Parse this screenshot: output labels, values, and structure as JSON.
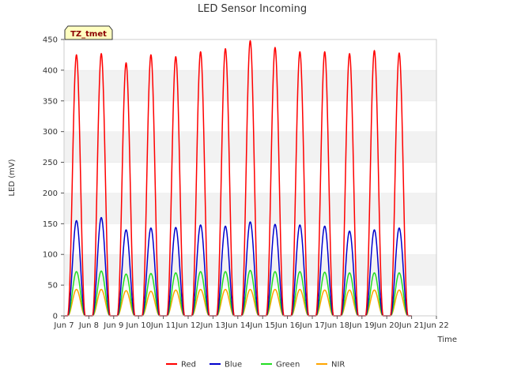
{
  "chart_data": {
    "type": "line",
    "title": "LED Sensor Incoming",
    "xlabel": "Time",
    "ylabel": "LED (mV)",
    "badge": "TZ_tmet",
    "xlim": [
      7,
      22
    ],
    "ylim": [
      0,
      450
    ],
    "x_ticks": [
      7,
      8,
      9,
      10,
      11,
      12,
      13,
      14,
      15,
      16,
      17,
      18,
      19,
      20,
      21,
      22
    ],
    "x_tick_labels": [
      "Jun 7",
      "Jun 8",
      "Jun 9",
      "Jun 10",
      "Jun 11",
      "Jun 12",
      "Jun 13",
      "Jun 14",
      "Jun 15",
      "Jun 16",
      "Jun 17",
      "Jun 18",
      "Jun 19",
      "Jun 20",
      "Jun 21",
      "Jun 22"
    ],
    "y_ticks": [
      0,
      50,
      100,
      150,
      200,
      250,
      300,
      350,
      400,
      450
    ],
    "y_tick_labels": [
      "0",
      "50",
      "100",
      "150",
      "200",
      "250",
      "300",
      "350",
      "400",
      "450"
    ],
    "grid": "horizontal bands",
    "legend_position": "bottom-center",
    "peak_days": [
      7.5,
      8.5,
      9.5,
      10.5,
      11.5,
      12.5,
      13.5,
      14.5,
      15.5,
      16.5,
      17.5,
      18.5,
      19.5,
      20.5
    ],
    "series": [
      {
        "name": "Red",
        "color": "#ff0000",
        "peaks": [
          425,
          427,
          412,
          425,
          422,
          430,
          435,
          448,
          437,
          430,
          430,
          427,
          432,
          428
        ]
      },
      {
        "name": "Blue",
        "color": "#0000cc",
        "peaks": [
          155,
          160,
          140,
          143,
          144,
          148,
          146,
          153,
          149,
          148,
          146,
          138,
          140,
          143
        ]
      },
      {
        "name": "Green",
        "color": "#22dd22",
        "peaks": [
          72,
          73,
          68,
          69,
          70,
          72,
          72,
          74,
          72,
          72,
          71,
          70,
          70,
          70
        ]
      },
      {
        "name": "NIR",
        "color": "#ffa500",
        "peaks": [
          43,
          43,
          41,
          40,
          42,
          43,
          43,
          43,
          43,
          43,
          42,
          42,
          42,
          42
        ]
      }
    ]
  }
}
